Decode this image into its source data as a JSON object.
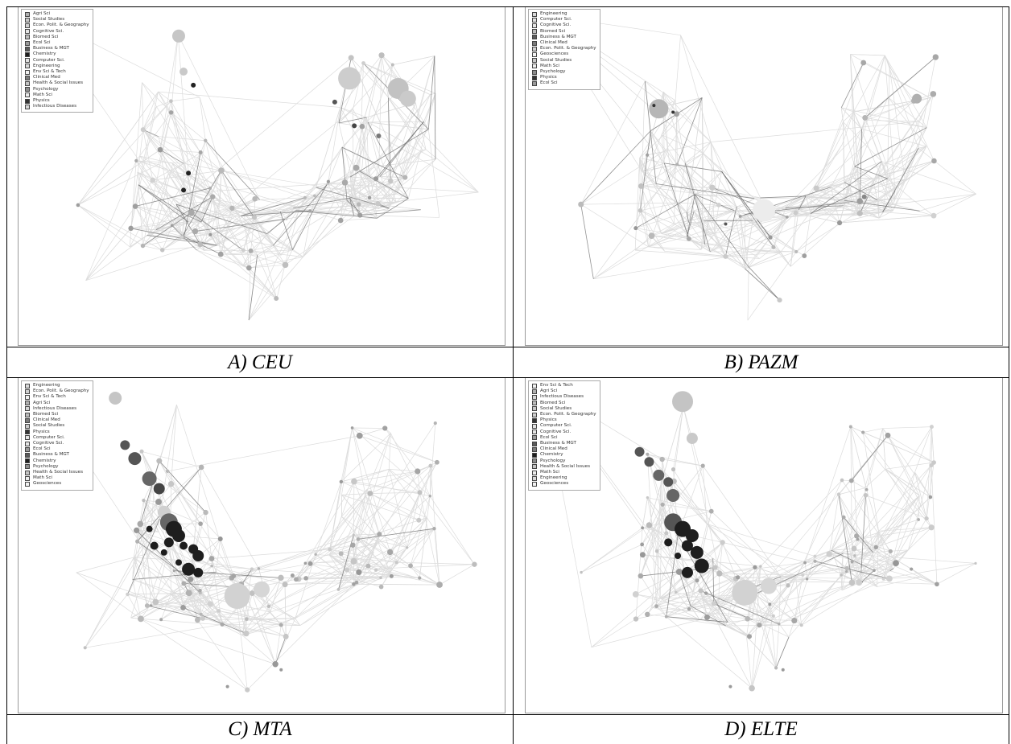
{
  "panels": [
    {
      "id": "A",
      "caption": "A) CEU",
      "legend": [
        {
          "label": "Agri Sci",
          "color": "#b0b0b0"
        },
        {
          "label": "Social Studies",
          "color": "#c8c8c8"
        },
        {
          "label": "Econ. Polit. & Geography",
          "color": "#d0d0d0"
        },
        {
          "label": "Cognitive Sci.",
          "color": "#e6e6e6"
        },
        {
          "label": "Biomed Sci",
          "color": "#bdbdbd"
        },
        {
          "label": "Ecol Sci",
          "color": "#9a9a9a"
        },
        {
          "label": "Business & MGT",
          "color": "#5a5a5a"
        },
        {
          "label": "Chemistry",
          "color": "#1e1e1e"
        },
        {
          "label": "Computer Sci.",
          "color": "#e2e2e2"
        },
        {
          "label": "Engineering",
          "color": "#d9d9d9"
        },
        {
          "label": "Env Sci & Tech",
          "color": "#f0f0f0"
        },
        {
          "label": "Clinical Med",
          "color": "#7a7a7a"
        },
        {
          "label": "Health & Social Issues",
          "color": "#c4c4c4"
        },
        {
          "label": "Psychology",
          "color": "#8c8c8c"
        },
        {
          "label": "Math Sci",
          "color": "#ededed"
        },
        {
          "label": "Physics",
          "color": "#333333"
        },
        {
          "label": "Infectious Diseases",
          "color": "#d5d5d5"
        }
      ]
    },
    {
      "id": "B",
      "caption": "B) PAZM",
      "legend": [
        {
          "label": "Engineering",
          "color": "#d9d9d9"
        },
        {
          "label": "Computer Sci.",
          "color": "#e2e2e2"
        },
        {
          "label": "Cognitive Sci.",
          "color": "#e6e6e6"
        },
        {
          "label": "Biomed Sci",
          "color": "#bdbdbd"
        },
        {
          "label": "Business & MGT",
          "color": "#5a5a5a"
        },
        {
          "label": "Clinical Med",
          "color": "#7a7a7a"
        },
        {
          "label": "Econ. Polit. & Geography",
          "color": "#d0d0d0"
        },
        {
          "label": "Geosciences",
          "color": "#f2f2f2"
        },
        {
          "label": "Social Studies",
          "color": "#c8c8c8"
        },
        {
          "label": "Math Sci",
          "color": "#ededed"
        },
        {
          "label": "Psychology",
          "color": "#8c8c8c"
        },
        {
          "label": "Physics",
          "color": "#333333"
        },
        {
          "label": "Ecol Sci",
          "color": "#9a9a9a"
        }
      ]
    },
    {
      "id": "C",
      "caption": "C)  MTA",
      "legend": [
        {
          "label": "Engineering",
          "color": "#d9d9d9"
        },
        {
          "label": "Econ. Polit. & Geography",
          "color": "#d0d0d0"
        },
        {
          "label": "Env Sci & Tech",
          "color": "#f0f0f0"
        },
        {
          "label": "Agri Sci",
          "color": "#b0b0b0"
        },
        {
          "label": "Infectious Diseases",
          "color": "#d5d5d5"
        },
        {
          "label": "Biomed Sci",
          "color": "#bdbdbd"
        },
        {
          "label": "Clinical Med",
          "color": "#7a7a7a"
        },
        {
          "label": "Social Studies",
          "color": "#c8c8c8"
        },
        {
          "label": "Physics",
          "color": "#333333"
        },
        {
          "label": "Computer Sci.",
          "color": "#e2e2e2"
        },
        {
          "label": "Cognitive Sci.",
          "color": "#e6e6e6"
        },
        {
          "label": "Ecol Sci",
          "color": "#9a9a9a"
        },
        {
          "label": "Business & MGT",
          "color": "#5a5a5a"
        },
        {
          "label": "Chemistry",
          "color": "#1e1e1e"
        },
        {
          "label": "Psychology",
          "color": "#8c8c8c"
        },
        {
          "label": "Health & Social Issues",
          "color": "#c4c4c4"
        },
        {
          "label": "Math Sci",
          "color": "#ededed"
        },
        {
          "label": "Geosciences",
          "color": "#f2f2f2"
        }
      ]
    },
    {
      "id": "D",
      "caption": "D) ELTE",
      "legend": [
        {
          "label": "Env Sci & Tech",
          "color": "#f0f0f0"
        },
        {
          "label": "Agri Sci",
          "color": "#b0b0b0"
        },
        {
          "label": "Infectious Diseases",
          "color": "#d5d5d5"
        },
        {
          "label": "Biomed Sci",
          "color": "#bdbdbd"
        },
        {
          "label": "Social Studies",
          "color": "#c8c8c8"
        },
        {
          "label": "Econ. Polit. & Geography",
          "color": "#d0d0d0"
        },
        {
          "label": "Physics",
          "color": "#333333"
        },
        {
          "label": "Computer Sci.",
          "color": "#e2e2e2"
        },
        {
          "label": "Cognitive Sci.",
          "color": "#e6e6e6"
        },
        {
          "label": "Ecol Sci",
          "color": "#9a9a9a"
        },
        {
          "label": "Business & MGT",
          "color": "#5a5a5a"
        },
        {
          "label": "Clinical Med",
          "color": "#7a7a7a"
        },
        {
          "label": "Chemistry",
          "color": "#1e1e1e"
        },
        {
          "label": "Psychology",
          "color": "#8c8c8c"
        },
        {
          "label": "Health & Social Issues",
          "color": "#c4c4c4"
        },
        {
          "label": "Math Sci",
          "color": "#ededed"
        },
        {
          "label": "Engineering",
          "color": "#d9d9d9"
        },
        {
          "label": "Geosciences",
          "color": "#f2f2f2"
        }
      ]
    }
  ],
  "colors": {
    "edge_light": "#dcdcdc",
    "edge_dark": "#6e6e6e",
    "node_default": "#c8c8c8",
    "node_dark": "#1e1e1e",
    "frame": "#9a9a9a",
    "grid_line": "#000000"
  }
}
